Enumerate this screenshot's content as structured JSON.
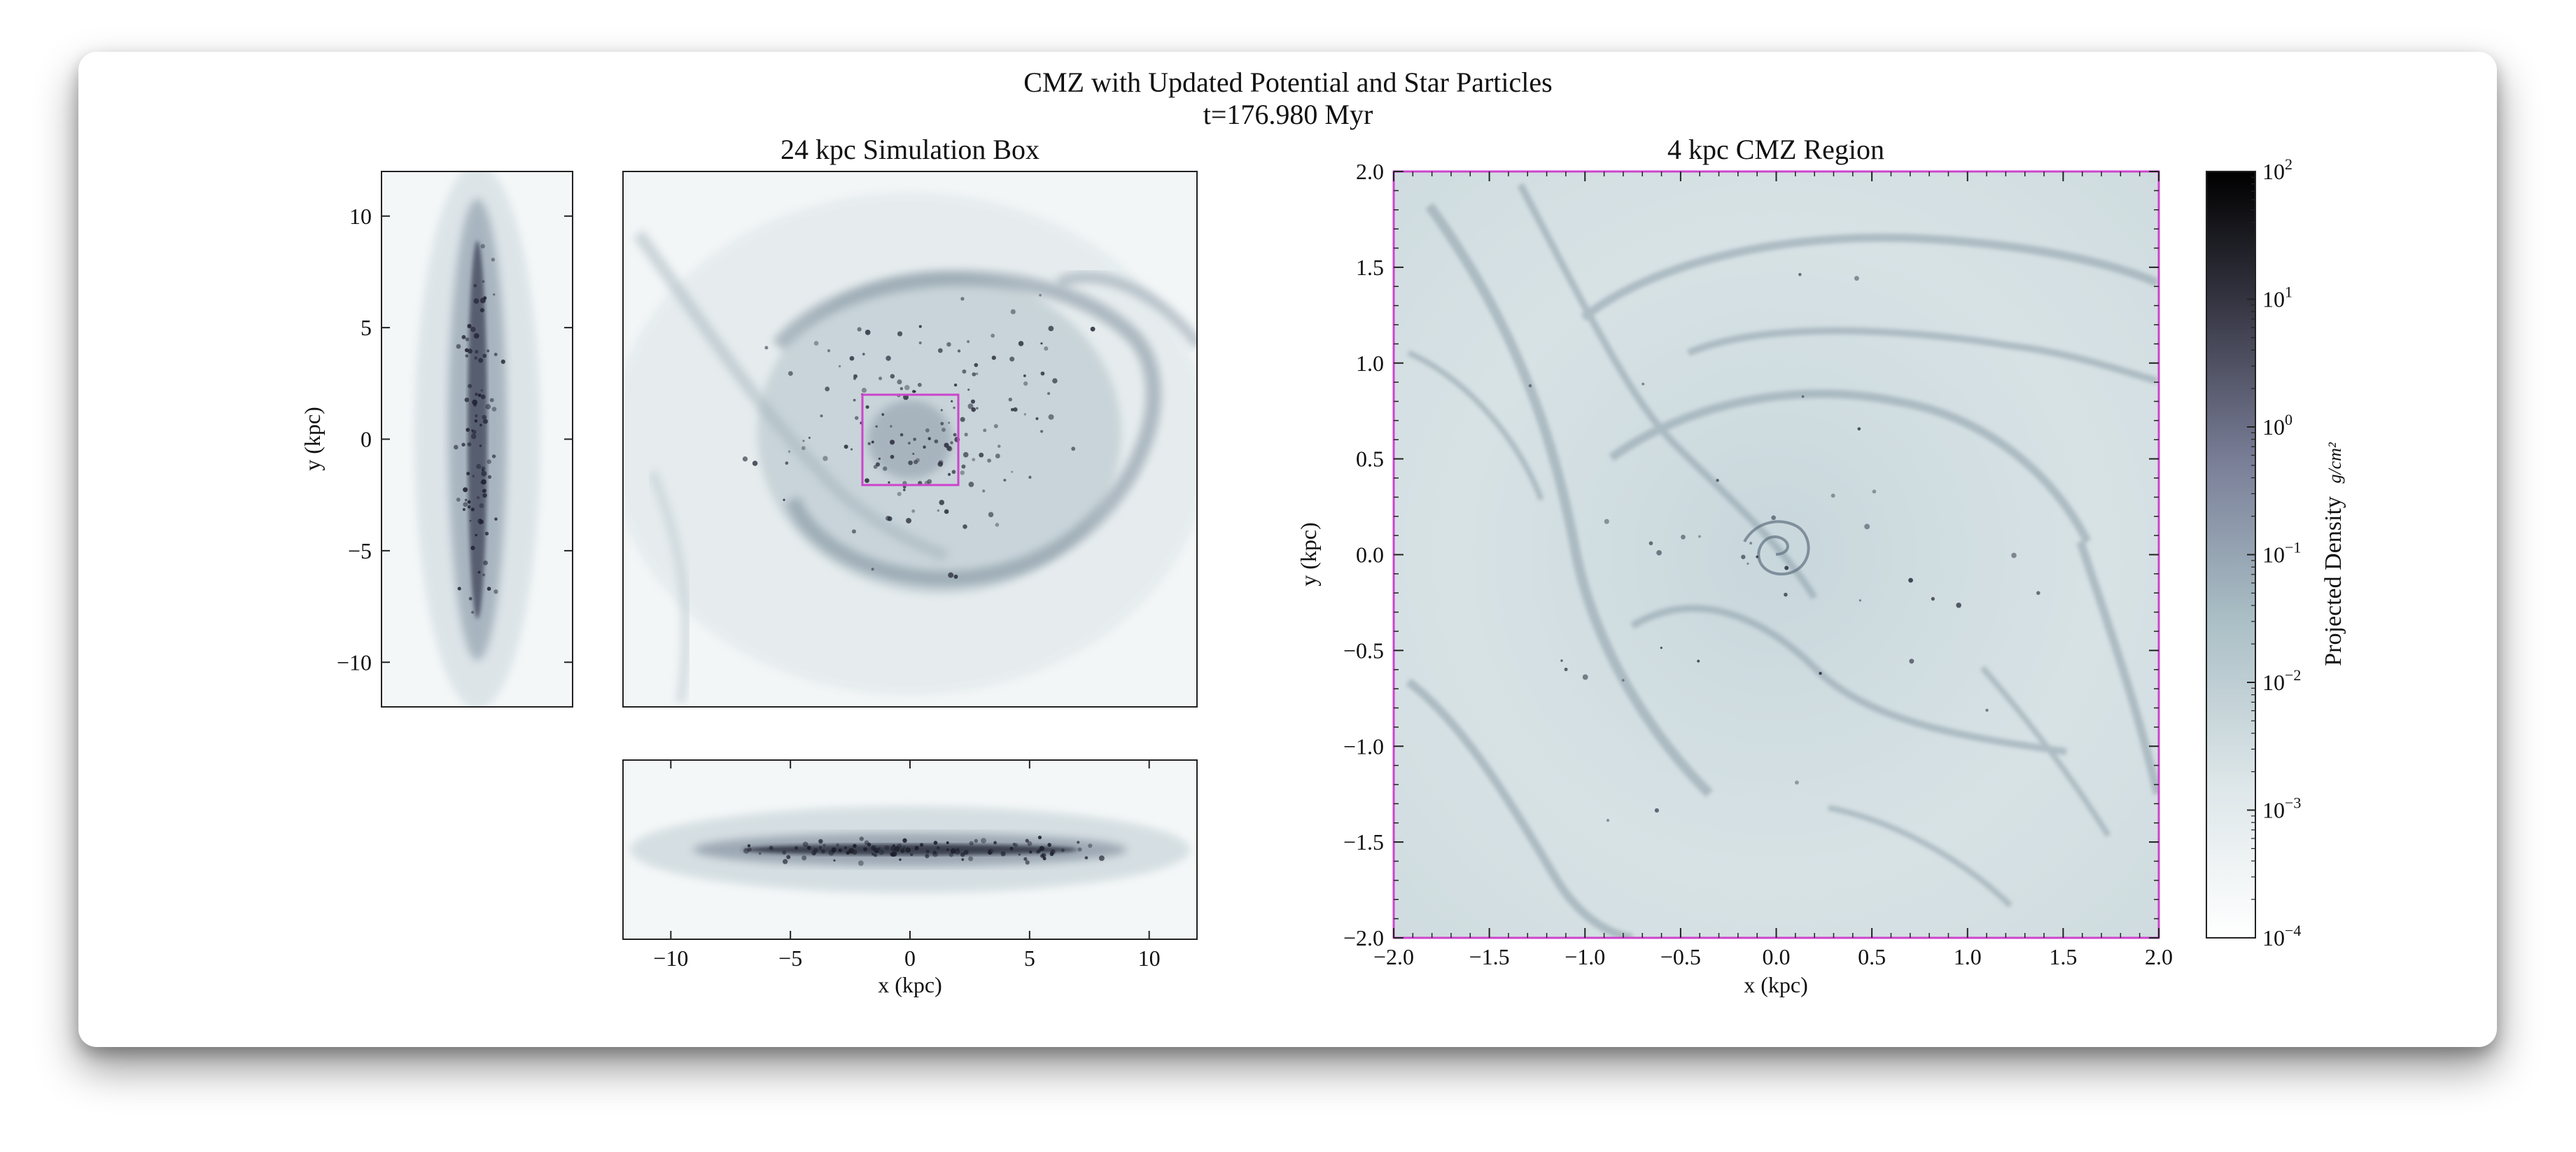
{
  "figure": {
    "title": "CMZ with Updated Potential and Star Particles",
    "subtitle": "t=176.980 Myr"
  },
  "chart_data": [
    {
      "type": "heatmap",
      "panel": "side-projection",
      "ylabel": "y (kpc)",
      "ylim": [
        -12,
        12
      ],
      "yticks": [
        10,
        5,
        0,
        -5,
        -10
      ],
      "ytick_labels": [
        "10",
        "5",
        "0",
        "−5",
        "−10"
      ]
    },
    {
      "type": "heatmap",
      "panel": "face-on",
      "title": "24 kpc Simulation Box",
      "xlim": [
        -12,
        12
      ],
      "ylim": [
        -12,
        12
      ],
      "zoom_box": {
        "x": [
          -2,
          2
        ],
        "y": [
          -2,
          2
        ],
        "color": "#cc44cc"
      }
    },
    {
      "type": "heatmap",
      "panel": "edge-on",
      "xlabel": "x (kpc)",
      "xlim": [
        -12,
        12
      ],
      "xticks": [
        -10,
        -5,
        0,
        5,
        10
      ],
      "xtick_labels": [
        "−10",
        "−5",
        "0",
        "5",
        "10"
      ]
    },
    {
      "type": "heatmap",
      "panel": "cmz",
      "title": "4 kpc CMZ Region",
      "xlabel": "x (kpc)",
      "ylabel": "y (kpc)",
      "xlim": [
        -2,
        2
      ],
      "ylim": [
        -2,
        2
      ],
      "xticks": [
        -2.0,
        -1.5,
        -1.0,
        -0.5,
        0.0,
        0.5,
        1.0,
        1.5,
        2.0
      ],
      "xtick_labels": [
        "−2.0",
        "−1.5",
        "−1.0",
        "−0.5",
        "0.0",
        "0.5",
        "1.0",
        "1.5",
        "2.0"
      ],
      "yticks": [
        2.0,
        1.5,
        1.0,
        0.5,
        0.0,
        -0.5,
        -1.0,
        -1.5,
        -2.0
      ],
      "ytick_labels": [
        "2.0",
        "1.5",
        "1.0",
        "0.5",
        "0.0",
        "−0.5",
        "−1.0",
        "−1.5",
        "−2.0"
      ],
      "frame_color": "#cc44cc"
    },
    {
      "type": "colorbar",
      "label": "Projected Density",
      "label_unit": "g/cm²",
      "scale": "log",
      "range": [
        0.0001,
        100
      ],
      "tick_values": [
        100,
        10,
        1,
        0.1,
        0.01,
        0.001,
        0.0001
      ],
      "tick_mantissa": "10",
      "tick_exponents": [
        "2",
        "1",
        "0",
        "−1",
        "−2",
        "−3",
        "−4"
      ],
      "colormap": [
        "#ffffff",
        "#b3c7cd",
        "#6f6f8a",
        "#000000"
      ]
    }
  ]
}
